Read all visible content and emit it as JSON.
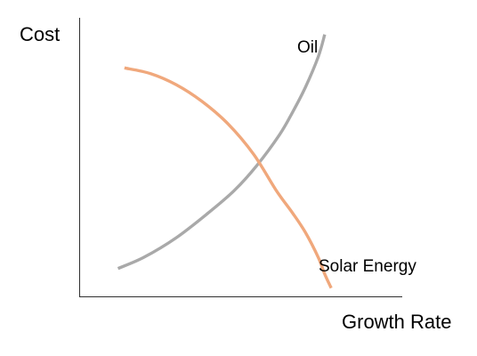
{
  "chart_data": {
    "type": "line",
    "title": "",
    "xlabel": "Growth Rate",
    "ylabel": "Cost",
    "xlim": [
      0,
      100
    ],
    "ylim": [
      0,
      100
    ],
    "grid": false,
    "legend": "none",
    "series": [
      {
        "name": "Oil",
        "color": "#a9a9a9",
        "x": [
          12,
          20,
          30,
          40,
          48,
          55,
          62,
          66,
          70,
          74,
          76
        ],
        "y": [
          10,
          14,
          21,
          30,
          38,
          47,
          58,
          66,
          75,
          86,
          94
        ]
      },
      {
        "name": "Solar Energy",
        "color": "#f0a87c",
        "x": [
          14,
          22,
          30,
          38,
          46,
          54,
          61,
          66,
          70,
          74,
          76,
          78
        ],
        "y": [
          82,
          80,
          76,
          70,
          62,
          51,
          38,
          30,
          23,
          14,
          8,
          3
        ]
      }
    ]
  }
}
